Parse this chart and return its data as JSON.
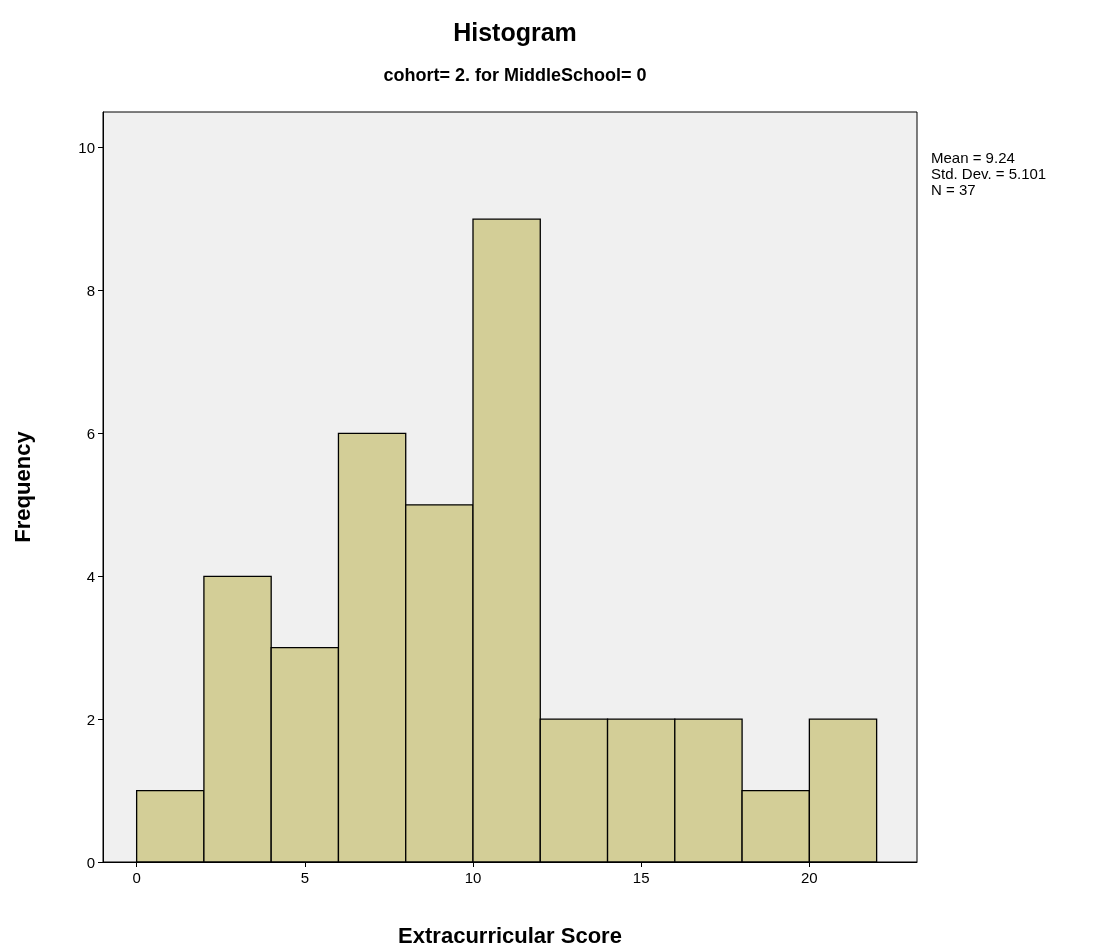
{
  "chart_data": {
    "type": "histogram",
    "title": "Histogram",
    "subtitle": "cohort= 2. for MiddleSchool= 0",
    "xlabel": "Extracurricular Score",
    "ylabel": "Frequency",
    "bins": [
      0,
      2,
      4,
      6,
      8,
      10,
      12,
      14,
      16,
      18,
      20,
      22
    ],
    "values": [
      1,
      4,
      3,
      6,
      5,
      9,
      2,
      2,
      2,
      1,
      2
    ],
    "color": "#d3ce97",
    "xlim": [
      -1,
      23.2
    ],
    "xticks": [
      0,
      5,
      10,
      15,
      20
    ],
    "ylim": [
      0,
      10.5
    ],
    "yticks": [
      0,
      2,
      4,
      6,
      8,
      10
    ],
    "grid": false,
    "annotations": [
      "Mean = 9.24",
      "Std. Dev. = 5.101",
      "N = 37"
    ]
  }
}
